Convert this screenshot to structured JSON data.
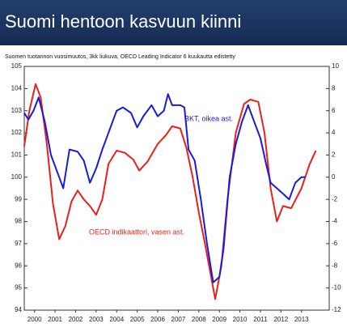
{
  "chart_data": {
    "type": "line",
    "title": "Suomi hentoon kasvuun kiinni",
    "subtitle": "Suomen tuotannon vuosimuutos, 3kk liukuva, OECD Leading Indicator 6 kuukautta edistetty",
    "annotations": [
      "BKT, oikea ast.",
      "OECD indikaattori, vasen ast."
    ],
    "xlim": [
      2000,
      2014.85
    ],
    "xticks": [
      {
        "value": 2000.5,
        "label": "2000"
      },
      {
        "value": 2001.5,
        "label": "2001"
      },
      {
        "value": 2002.5,
        "label": "2002"
      },
      {
        "value": 2003.5,
        "label": "2003"
      },
      {
        "value": 2004.5,
        "label": "2004"
      },
      {
        "value": 2005.5,
        "label": "2005"
      },
      {
        "value": 2006.5,
        "label": "2006"
      },
      {
        "value": 2007.5,
        "label": "2007"
      },
      {
        "value": 2008.5,
        "label": "2008"
      },
      {
        "value": 2009.5,
        "label": "2009"
      },
      {
        "value": 2010.5,
        "label": "2010"
      },
      {
        "value": 2011.5,
        "label": "2011"
      },
      {
        "value": 2012.5,
        "label": "2012"
      },
      {
        "value": 2013.5,
        "label": "2013"
      }
    ],
    "ylim": [
      94,
      105
    ],
    "yticks": [
      94,
      95,
      96,
      97,
      98,
      99,
      100,
      101,
      102,
      103,
      104,
      105
    ],
    "y2lim": [
      -12,
      10
    ],
    "y2ticks": [
      -12,
      -10,
      -8,
      -6,
      -4,
      -2,
      0,
      2,
      4,
      6,
      8,
      10
    ],
    "series": [
      {
        "name": "OECD indikaattori",
        "color": "#e8201c",
        "axis": "y",
        "x": [
          2000.0,
          2000.25,
          2000.55,
          2000.8,
          2001.1,
          2001.4,
          2001.7,
          2002.0,
          2002.3,
          2002.6,
          2002.9,
          2003.2,
          2003.5,
          2003.8,
          2004.1,
          2004.5,
          2004.9,
          2005.3,
          2005.6,
          2006.0,
          2006.5,
          2006.9,
          2007.2,
          2007.6,
          2007.9,
          2008.2,
          2008.5,
          2008.8,
          2009.1,
          2009.3,
          2009.6,
          2009.9,
          2010.3,
          2010.7,
          2011.0,
          2011.4,
          2011.7,
          2012.0,
          2012.3,
          2012.6,
          2013.0,
          2013.5,
          2013.9,
          2014.2
        ],
        "values": [
          101.4,
          103.0,
          104.2,
          103.6,
          101.5,
          98.8,
          97.2,
          97.8,
          98.9,
          99.4,
          99.0,
          98.7,
          98.3,
          99.0,
          100.6,
          101.2,
          101.1,
          100.8,
          100.3,
          100.7,
          101.5,
          101.9,
          102.3,
          102.2,
          101.3,
          100.0,
          98.4,
          97.0,
          95.5,
          94.5,
          96.0,
          99.0,
          102.0,
          103.3,
          103.5,
          103.4,
          102.0,
          99.5,
          98.0,
          98.7,
          98.6,
          99.5,
          100.6,
          101.2
        ]
      },
      {
        "name": "BKT",
        "color": "#1a1adc",
        "axis": "y2",
        "x": [
          2000.0,
          2000.2,
          2000.45,
          2000.7,
          2001.0,
          2001.3,
          2001.7,
          2001.9,
          2002.2,
          2002.6,
          2002.9,
          2003.2,
          2003.5,
          2003.8,
          2004.2,
          2004.5,
          2004.8,
          2005.2,
          2005.5,
          2005.8,
          2006.2,
          2006.5,
          2006.8,
          2007.0,
          2007.2,
          2007.6,
          2007.8,
          2008.0,
          2008.3,
          2008.6,
          2008.9,
          2009.2,
          2009.5,
          2009.7,
          2010.0,
          2010.3,
          2010.6,
          2010.9,
          2011.2,
          2011.5,
          2011.8,
          2012.0,
          2012.3,
          2012.6,
          2012.9,
          2013.2,
          2013.5,
          2013.7
        ],
        "values": [
          5.8,
          5.2,
          6.0,
          7.2,
          5.0,
          2.0,
          0.0,
          -1.0,
          2.5,
          2.3,
          1.5,
          -0.5,
          0.8,
          2.5,
          4.5,
          6.0,
          6.3,
          5.8,
          4.5,
          5.5,
          6.5,
          5.5,
          6.0,
          7.5,
          6.5,
          6.5,
          6.3,
          2.5,
          1.5,
          -2.0,
          -6.0,
          -9.5,
          -9.0,
          -6.5,
          0.0,
          3.0,
          5.0,
          6.5,
          5.0,
          3.5,
          1.0,
          -0.5,
          -1.0,
          -1.5,
          -2.0,
          -0.5,
          0.0,
          0.0
        ]
      }
    ]
  }
}
